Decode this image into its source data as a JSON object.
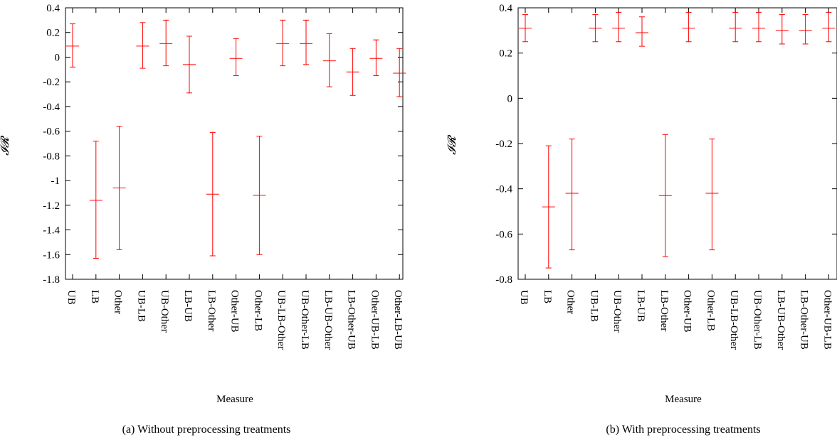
{
  "chart_data": [
    {
      "type": "errorbar",
      "caption": "(a) Without preprocessing treatments",
      "xlabel": "Measure",
      "ylabel": "𝓘𝓡",
      "ylim": [
        -1.8,
        0.4
      ],
      "yticks": [
        0.4,
        0.2,
        0,
        -0.2,
        -0.4,
        -0.6,
        -0.8,
        -1,
        -1.2,
        -1.4,
        -1.6,
        -1.8
      ],
      "grid": false,
      "color": "#ff0000",
      "categories": [
        "UB",
        "LB",
        "Other",
        "UB-LB",
        "UB-Other",
        "LB-UB",
        "LB-Other",
        "Other-UB",
        "Other-LB",
        "UB-LB-Other",
        "UB-Other-LB",
        "LB-UB-Other",
        "LB-Other-UB",
        "Other-UB-LB",
        "Other-LB-UB"
      ],
      "values": [
        0.09,
        -1.16,
        -1.06,
        0.09,
        0.11,
        -0.06,
        -1.11,
        -0.01,
        -1.12,
        0.11,
        0.11,
        -0.03,
        -0.12,
        -0.01,
        -0.13
      ],
      "lower": [
        -0.08,
        -1.63,
        -1.56,
        -0.09,
        -0.07,
        -0.29,
        -1.61,
        -0.15,
        -1.6,
        -0.07,
        -0.06,
        -0.24,
        -0.31,
        -0.15,
        -0.32
      ],
      "upper": [
        0.27,
        -0.68,
        -0.56,
        0.28,
        0.3,
        0.17,
        -0.61,
        0.15,
        -0.64,
        0.3,
        0.3,
        0.19,
        0.07,
        0.14,
        0.07
      ]
    },
    {
      "type": "errorbar",
      "caption": "(b) With preprocessing treatments",
      "xlabel": "Measure",
      "ylabel": "𝓘𝓡",
      "ylim": [
        -0.8,
        0.4
      ],
      "yticks": [
        0.4,
        0.2,
        0,
        -0.2,
        -0.4,
        -0.6,
        -0.8
      ],
      "grid": false,
      "color": "#ff0000",
      "categories": [
        "UB",
        "LB",
        "Other",
        "UB-LB",
        "UB-Other",
        "LB-UB",
        "LB-Other",
        "Other-UB",
        "Other-LB",
        "UB-LB-Other",
        "UB-Other-LB",
        "LB-UB-Other",
        "LB-Other-UB",
        "Other-UB-LB",
        "Other-LB-UB"
      ],
      "values": [
        0.31,
        -0.48,
        -0.42,
        0.31,
        0.31,
        0.29,
        -0.43,
        0.31,
        -0.42,
        0.31,
        0.31,
        0.3,
        0.3,
        0.31,
        0.3
      ],
      "lower": [
        0.25,
        -0.75,
        -0.67,
        0.25,
        0.25,
        0.23,
        -0.7,
        0.25,
        -0.67,
        0.25,
        0.25,
        0.24,
        0.24,
        0.25,
        0.24
      ],
      "upper": [
        0.37,
        -0.21,
        -0.18,
        0.37,
        0.38,
        0.36,
        -0.16,
        0.38,
        -0.18,
        0.38,
        0.38,
        0.37,
        0.37,
        0.38,
        0.37
      ]
    }
  ]
}
